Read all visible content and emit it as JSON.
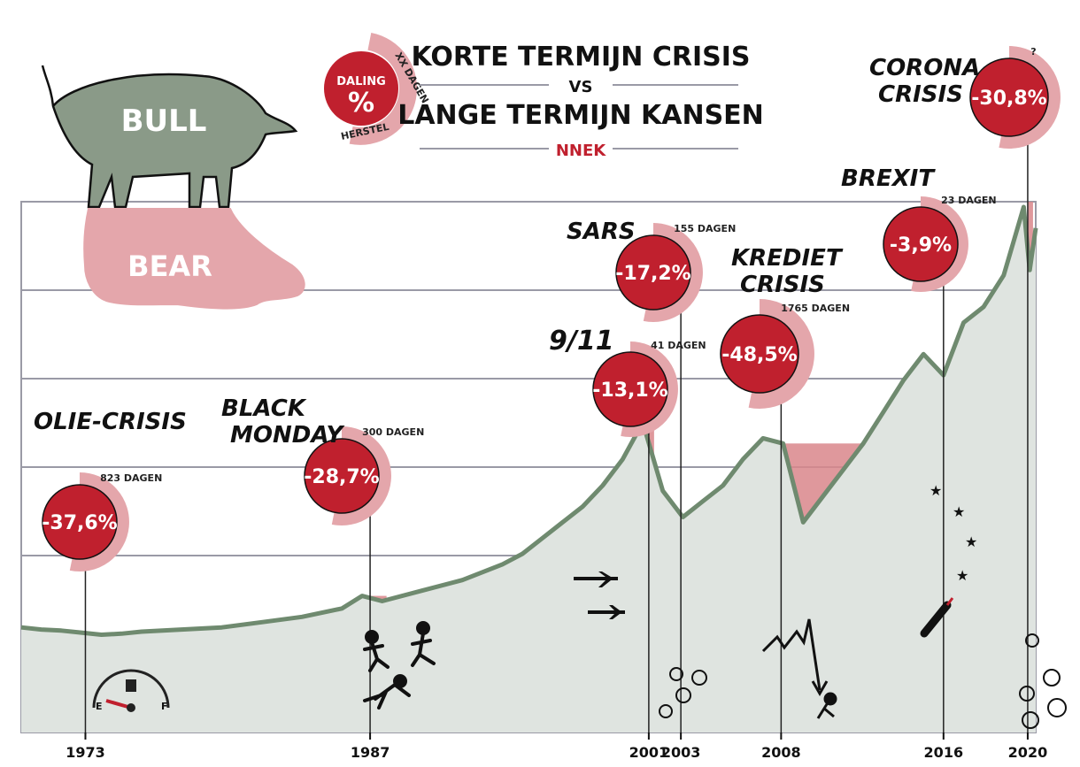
{
  "title": {
    "line1": "KORTE TERMIJN CRISIS",
    "vs": "VS",
    "line2": "LANGE TERMIJN KANSEN",
    "brand": "NNEK"
  },
  "legend_badge": {
    "top": "DALING",
    "symbol": "%",
    "ring_top": "XX DAGEN",
    "ring_bottom": "HERSTEL"
  },
  "animals": {
    "bull": "BULL",
    "bear": "BEAR"
  },
  "colors": {
    "badge_red": "#c0202e",
    "ring_pink": "#e4a6ab",
    "crisis_band": "#d9868b",
    "area_fill": "#dfe4e0",
    "line": "#6f8a6f",
    "grid": "#9a9aa6"
  },
  "chart_data": {
    "type": "area",
    "x_tick_labels": [
      "1973",
      "1987",
      "2001",
      "2003",
      "2008",
      "2016",
      "2020"
    ],
    "x": [
      1970,
      1971,
      1972,
      1973,
      1974,
      1975,
      1976,
      1978,
      1980,
      1982,
      1984,
      1986,
      1987,
      1988,
      1990,
      1992,
      1994,
      1995,
      1996,
      1997,
      1998,
      1999,
      2000,
      2001,
      2002,
      2003,
      2004,
      2005,
      2006,
      2007,
      2008,
      2009,
      2010,
      2011,
      2012,
      2013,
      2014,
      2015,
      2016,
      2017,
      2018,
      2019,
      2020,
      2020.3,
      2020.6
    ],
    "y": [
      1.0,
      0.98,
      0.97,
      0.95,
      0.93,
      0.94,
      0.96,
      0.98,
      1.0,
      1.05,
      1.1,
      1.18,
      1.3,
      1.25,
      1.35,
      1.45,
      1.6,
      1.7,
      1.85,
      2.0,
      2.15,
      2.35,
      2.6,
      2.95,
      2.3,
      2.05,
      2.2,
      2.35,
      2.6,
      2.8,
      2.75,
      2.0,
      2.25,
      2.5,
      2.75,
      3.05,
      3.35,
      3.6,
      3.4,
      3.9,
      4.05,
      4.35,
      5.0,
      4.4,
      4.8
    ],
    "crises": [
      {
        "name": "OLIE-CRISIS",
        "year": "1973",
        "decline": "-37,6%",
        "days": "823",
        "unit": "DAGEN"
      },
      {
        "name": "BLACK MONDAY",
        "year": "1987",
        "decline": "-28,7%",
        "days": "300",
        "unit": "DAGEN"
      },
      {
        "name": "9/11",
        "year": "2001",
        "decline": "-13,1%",
        "days": "41",
        "unit": "DAGEN"
      },
      {
        "name": "SARS",
        "year": "2003",
        "decline": "-17,2%",
        "days": "155",
        "unit": "DAGEN"
      },
      {
        "name": "KREDIET CRISIS",
        "year": "2008",
        "decline": "-48,5%",
        "days": "1765",
        "unit": "DAGEN"
      },
      {
        "name": "BREXIT",
        "year": "2016",
        "decline": "-3,9%",
        "days": "23",
        "unit": "DAGEN"
      },
      {
        "name": "CORONA CRISIS",
        "year": "2020",
        "decline": "-30,8%",
        "days": "?",
        "unit": ""
      }
    ],
    "grid": true
  }
}
